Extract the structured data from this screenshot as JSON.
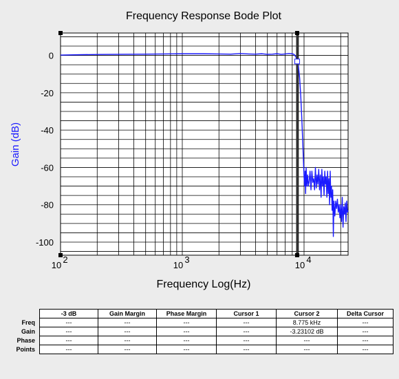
{
  "chart_data": {
    "type": "line",
    "title": "Frequency Response Bode Plot",
    "xlabel": "Frequency Log(Hz)",
    "ylabel": "Gain (dB)",
    "x_scale": "log",
    "xlim": [
      100,
      23000
    ],
    "ylim": [
      -107,
      12
    ],
    "grid": true,
    "y_ticks": [
      0,
      -20,
      -40,
      -60,
      -80,
      -100
    ],
    "x_ticks": [
      {
        "value": 100,
        "base": "10",
        "exp": "2"
      },
      {
        "value": 1000,
        "base": "10",
        "exp": "3"
      },
      {
        "value": 10000,
        "base": "10",
        "exp": "4"
      }
    ],
    "series": [
      {
        "color": "#1a1aff",
        "points": [
          [
            100,
            0.2
          ],
          [
            150,
            0.4
          ],
          [
            200,
            0.5
          ],
          [
            300,
            0.6
          ],
          [
            500,
            0.7
          ],
          [
            700,
            0.8
          ],
          [
            1000,
            0.9
          ],
          [
            1500,
            0.9
          ],
          [
            2000,
            0.8
          ],
          [
            2500,
            0.7
          ],
          [
            3000,
            1.0
          ],
          [
            3500,
            0.8
          ],
          [
            4000,
            0.7
          ],
          [
            4500,
            0.9
          ],
          [
            5000,
            0.6
          ],
          [
            5500,
            0.7
          ],
          [
            6000,
            0.9
          ],
          [
            6500,
            0.6
          ],
          [
            7000,
            0.8
          ],
          [
            7500,
            1.0
          ],
          [
            8000,
            0.9
          ],
          [
            8300,
            0.5
          ],
          [
            8600,
            -1.0
          ],
          [
            8775,
            -3.23
          ],
          [
            9000,
            -6
          ],
          [
            9200,
            -12
          ],
          [
            9400,
            -22
          ],
          [
            9600,
            -35
          ],
          [
            9800,
            -50
          ],
          [
            10000,
            -65
          ],
          [
            10100,
            -70
          ],
          [
            10200,
            -62
          ],
          [
            10300,
            -74
          ],
          [
            10400,
            -60
          ],
          [
            10550,
            -70
          ],
          [
            10700,
            -64
          ],
          [
            10850,
            -70
          ],
          [
            11000,
            -68
          ],
          [
            11200,
            -62
          ],
          [
            11400,
            -72
          ],
          [
            11600,
            -62
          ],
          [
            11800,
            -68
          ],
          [
            12000,
            -66
          ],
          [
            12200,
            -72
          ],
          [
            12400,
            -60
          ],
          [
            12600,
            -71
          ],
          [
            12800,
            -64
          ],
          [
            13000,
            -69
          ],
          [
            13200,
            -61
          ],
          [
            13400,
            -72
          ],
          [
            13600,
            -64
          ],
          [
            13800,
            -76
          ],
          [
            14000,
            -61
          ],
          [
            14200,
            -70
          ],
          [
            14400,
            -65
          ],
          [
            14600,
            -75
          ],
          [
            14800,
            -62
          ],
          [
            15000,
            -69
          ],
          [
            15200,
            -65
          ],
          [
            15400,
            -76
          ],
          [
            15600,
            -62
          ],
          [
            15800,
            -74
          ],
          [
            16000,
            -66
          ],
          [
            16200,
            -80
          ],
          [
            16400,
            -62
          ],
          [
            16600,
            -76
          ],
          [
            16800,
            -70
          ],
          [
            17000,
            -83
          ],
          [
            17200,
            -72
          ],
          [
            17400,
            -97
          ],
          [
            17600,
            -78
          ],
          [
            17900,
            -86
          ],
          [
            18200,
            -78
          ],
          [
            18500,
            -82
          ],
          [
            18800,
            -77
          ],
          [
            19100,
            -84
          ],
          [
            19400,
            -80
          ],
          [
            19700,
            -87
          ],
          [
            20000,
            -80
          ],
          [
            20300,
            -89
          ],
          [
            20600,
            -76
          ],
          [
            20900,
            -92
          ],
          [
            21200,
            -81
          ],
          [
            21500,
            -85
          ],
          [
            21800,
            -79
          ],
          [
            22100,
            -89
          ],
          [
            22400,
            -78
          ],
          [
            22700,
            -84
          ],
          [
            23000,
            -83
          ]
        ]
      }
    ],
    "cursors": [
      {
        "x": 8775,
        "y": -3.23102,
        "label": "Cursor 2"
      }
    ]
  },
  "table": {
    "columns": [
      "-3 dB",
      "Gain Margin",
      "Phase Margin",
      "Cursor 1",
      "Cursor 2",
      "Delta Cursor"
    ],
    "rows": [
      {
        "label": "Freq",
        "cells": [
          "---",
          "---",
          "---",
          "---",
          "8.775 kHz",
          "---"
        ]
      },
      {
        "label": "Gain",
        "cells": [
          "---",
          "---",
          "---",
          "---",
          "-3.23102 dB",
          "---"
        ]
      },
      {
        "label": "Phase",
        "cells": [
          "---",
          "---",
          "---",
          "---",
          "---",
          "---"
        ]
      },
      {
        "label": "Points",
        "cells": [
          "---",
          "---",
          "---",
          "---",
          "---",
          "---"
        ]
      }
    ]
  },
  "colors": {
    "trace": "#1a1aff",
    "grid": "#000000",
    "plot_bg": "#ffffff",
    "page_bg": "#ececec"
  }
}
